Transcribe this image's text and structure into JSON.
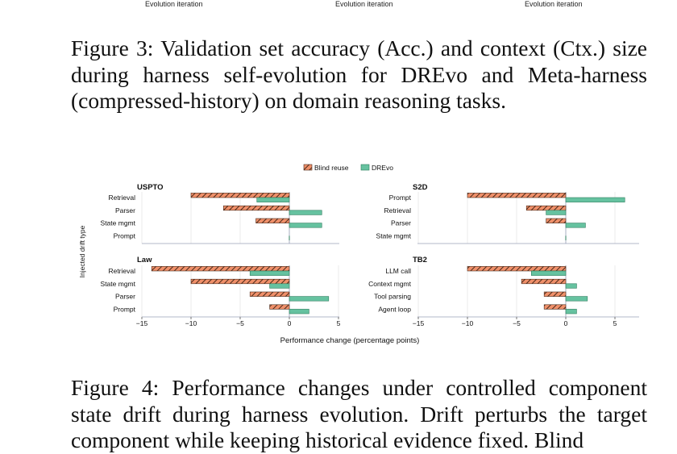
{
  "top_axis_labels": [
    "Evolution iteration",
    "Evolution iteration",
    "Evolution iteration"
  ],
  "figure3_caption": "Figure 3: Validation set accuracy (Acc.) and context (Ctx.) size during harness self-evolution for DREvo and Meta-harness (compressed-history) on domain reasoning tasks.",
  "figure4_caption": "Figure 4: Performance changes under controlled component state drift during harness evolution. Drift perturbs the target component while keeping historical evidence fixed. Blind",
  "colors": {
    "blind": "#f0906a",
    "blind_hatch": "#4a2a1a",
    "drevo": "#66c2a0",
    "drevo_edge": "#2e7d5e"
  },
  "chart_data": {
    "type": "bar",
    "orientation": "horizontal",
    "legend": [
      "Blind reuse",
      "DREvo"
    ],
    "legend_position": "top-center",
    "xlabel": "Performance change (percentage points)",
    "ylabel": "Injected drift type",
    "grid": true,
    "panels": [
      {
        "title": "USPTO",
        "categories": [
          "Retrieval",
          "Parser",
          "State mgmt",
          "Prompt"
        ],
        "series": [
          {
            "name": "Blind reuse",
            "values": [
              -10,
              -6.7,
              -3.4,
              0
            ]
          },
          {
            "name": "DREvo",
            "values": [
              -3.3,
              3.3,
              3.3,
              0
            ]
          }
        ],
        "xlim": [
          -15,
          5
        ],
        "xticks": [
          -15,
          -10,
          -5,
          0
        ]
      },
      {
        "title": "S2D",
        "categories": [
          "Prompt",
          "Retrieval",
          "Parser",
          "State mgmt"
        ],
        "series": [
          {
            "name": "Blind reuse",
            "values": [
              -10,
              -4,
              -2,
              0
            ]
          },
          {
            "name": "DREvo",
            "values": [
              6,
              -2,
              2,
              0
            ]
          }
        ],
        "xlim": [
          -15,
          7.5
        ],
        "xticks": [
          -15,
          -10,
          -5,
          0,
          5
        ]
      },
      {
        "title": "Law",
        "categories": [
          "Retrieval",
          "State mgmt",
          "Parser",
          "Prompt"
        ],
        "series": [
          {
            "name": "Blind reuse",
            "values": [
              -14,
              -10,
              -4,
              -2
            ]
          },
          {
            "name": "DREvo",
            "values": [
              -4,
              -2,
              4,
              2
            ]
          }
        ],
        "xlim": [
          -15,
          7.5
        ],
        "xticks": [
          -15,
          -10,
          -5,
          0,
          5
        ]
      },
      {
        "title": "TB2",
        "categories": [
          "LLM call",
          "Context mgmt",
          "Tool parsing",
          "Agent loop"
        ],
        "series": [
          {
            "name": "Blind reuse",
            "values": [
              -10,
              -4.5,
              -2.2,
              -2.2
            ]
          },
          {
            "name": "DREvo",
            "values": [
              -3.5,
              1.1,
              2.2,
              1.1
            ]
          }
        ],
        "xlim": [
          -15,
          7.5
        ],
        "xticks": [
          -15,
          -10,
          -5,
          0,
          5
        ]
      }
    ]
  }
}
